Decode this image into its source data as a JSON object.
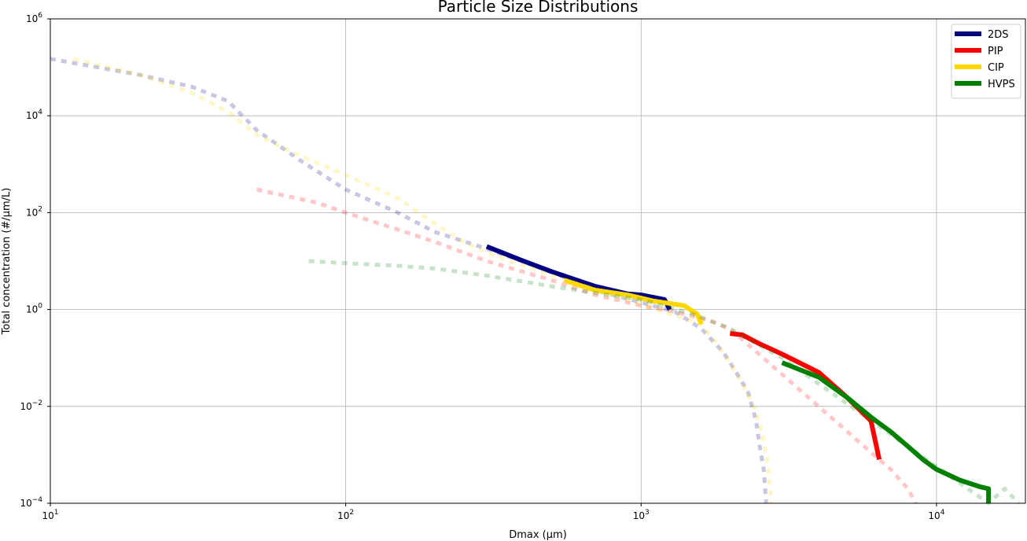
{
  "chart_data": {
    "type": "line",
    "title": "Particle Size Distributions",
    "xlabel": "Dmax (μm)",
    "ylabel": "Total concentration (#/μm/L)",
    "xscale": "log",
    "yscale": "log",
    "xlim": [
      10,
      20000
    ],
    "ylim": [
      0.0001,
      1000000
    ],
    "grid": true,
    "legend_position": "top-right",
    "x_ticks": [
      {
        "value": 10,
        "base": "10",
        "exp": "1"
      },
      {
        "value": 100,
        "base": "10",
        "exp": "2"
      },
      {
        "value": 1000,
        "base": "10",
        "exp": "3"
      },
      {
        "value": 10000,
        "base": "10",
        "exp": "4"
      }
    ],
    "y_ticks": [
      {
        "value": 0.0001,
        "base": "10",
        "exp": "−4"
      },
      {
        "value": 0.01,
        "base": "10",
        "exp": "−2"
      },
      {
        "value": 1,
        "base": "10",
        "exp": "0"
      },
      {
        "value": 100,
        "base": "10",
        "exp": "2"
      },
      {
        "value": 10000,
        "base": "10",
        "exp": "4"
      },
      {
        "value": 1000000,
        "base": "10",
        "exp": "6"
      }
    ],
    "series": [
      {
        "name": "2DS",
        "color": "#000080",
        "faded_dotted": [
          [
            10,
            150000
          ],
          [
            20,
            70000
          ],
          [
            30,
            40000
          ],
          [
            40,
            20000
          ],
          [
            50,
            5000
          ],
          [
            70,
            1200
          ],
          [
            100,
            300
          ],
          [
            150,
            100
          ],
          [
            200,
            40
          ],
          [
            300,
            18
          ],
          [
            500,
            6
          ],
          [
            700,
            2.5
          ],
          [
            1000,
            1.4
          ],
          [
            1300,
            0.9
          ],
          [
            1600,
            0.4
          ],
          [
            1900,
            0.13
          ],
          [
            2100,
            0.05
          ],
          [
            2300,
            0.02
          ],
          [
            2450,
            0.005
          ],
          [
            2520,
            0.0015
          ],
          [
            2600,
            0.0005
          ],
          [
            2650,
            0.0001
          ]
        ],
        "solid": [
          [
            300,
            20
          ],
          [
            400,
            10
          ],
          [
            500,
            6
          ],
          [
            700,
            3
          ],
          [
            900,
            2.1
          ],
          [
            1000,
            2
          ],
          [
            1200,
            1.6
          ],
          [
            1250,
            1.0
          ]
        ]
      },
      {
        "name": "PIP",
        "color": "#ff0000",
        "faded_dotted": [
          [
            50,
            300
          ],
          [
            80,
            160
          ],
          [
            100,
            100
          ],
          [
            150,
            45
          ],
          [
            200,
            25
          ],
          [
            300,
            10
          ],
          [
            500,
            4
          ],
          [
            700,
            2
          ],
          [
            1000,
            1.2
          ],
          [
            1300,
            0.9
          ],
          [
            1700,
            0.6
          ],
          [
            2000,
            0.4
          ],
          [
            6400,
            0.0008
          ],
          [
            7000,
            0.0005
          ],
          [
            8000,
            0.0002
          ],
          [
            8500,
            0.0001
          ]
        ],
        "solid": [
          [
            2000,
            0.32
          ],
          [
            2200,
            0.3
          ],
          [
            2500,
            0.2
          ],
          [
            3000,
            0.12
          ],
          [
            4000,
            0.05
          ],
          [
            5000,
            0.015
          ],
          [
            6000,
            0.005
          ],
          [
            6400,
            0.0008
          ]
        ]
      },
      {
        "name": "CIP",
        "color": "#ffd700",
        "faded_dotted": [
          [
            12,
            150000
          ],
          [
            20,
            70000
          ],
          [
            30,
            30000
          ],
          [
            40,
            12000
          ],
          [
            50,
            4000
          ],
          [
            70,
            1500
          ],
          [
            100,
            600
          ],
          [
            150,
            200
          ],
          [
            200,
            60
          ],
          [
            250,
            25
          ],
          [
            300,
            15
          ],
          [
            400,
            8
          ],
          [
            500,
            5
          ],
          [
            1600,
            0.5
          ],
          [
            1800,
            0.2
          ],
          [
            2000,
            0.08
          ],
          [
            2200,
            0.03
          ],
          [
            2400,
            0.01
          ],
          [
            2500,
            0.005
          ],
          [
            2600,
            0.002
          ],
          [
            2700,
            0.0005
          ],
          [
            2750,
            0.0001
          ]
        ],
        "solid": [
          [
            550,
            4
          ],
          [
            700,
            2.5
          ],
          [
            900,
            2
          ],
          [
            1100,
            1.5
          ],
          [
            1400,
            1.2
          ],
          [
            1550,
            0.8
          ],
          [
            1600,
            0.5
          ]
        ]
      },
      {
        "name": "HVPS",
        "color": "#008000",
        "faded_dotted": [
          [
            75,
            10
          ],
          [
            100,
            9
          ],
          [
            150,
            8
          ],
          [
            200,
            7
          ],
          [
            300,
            5
          ],
          [
            500,
            3
          ],
          [
            700,
            2.2
          ],
          [
            1000,
            1.6
          ],
          [
            1500,
            0.8
          ],
          [
            2000,
            0.4
          ],
          [
            3000,
            0.1
          ],
          [
            15000,
            0.0001
          ],
          [
            17000,
            0.0002
          ],
          [
            19000,
            0.0001
          ]
        ],
        "solid": [
          [
            3000,
            0.08
          ],
          [
            4000,
            0.04
          ],
          [
            5000,
            0.015
          ],
          [
            6000,
            0.006
          ],
          [
            7000,
            0.003
          ],
          [
            8000,
            0.0015
          ],
          [
            9000,
            0.0008
          ],
          [
            10000,
            0.0005
          ],
          [
            12000,
            0.0003
          ],
          [
            14000,
            0.00022
          ],
          [
            15000,
            0.0002
          ],
          [
            15000,
            0.0001
          ]
        ]
      }
    ]
  }
}
